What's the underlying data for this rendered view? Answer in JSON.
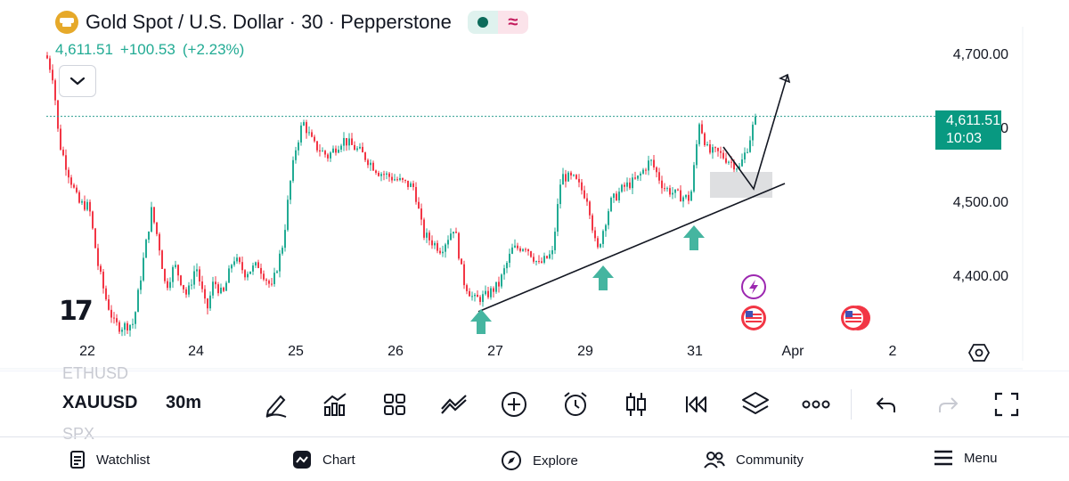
{
  "header": {
    "title": "Gold Spot / U.S. Dollar · 30 · Pepperstone",
    "logo_icon": "gold-bars-icon",
    "market_status_icon": "market-open-dot-icon",
    "data_mode_icon": "delayed-wave-icon"
  },
  "quote": {
    "last": "4,611.51",
    "change": "+100.53",
    "change_pct": "(+2.23%)",
    "color": "#22ab94"
  },
  "price_axis": {
    "labels": [
      "4,700.00",
      "4,500.00",
      "4,400.00"
    ],
    "current_price": "4,611.51",
    "countdown": "10:03",
    "tag_color": "#089981"
  },
  "time_axis": {
    "labels": [
      "22",
      "24",
      "25",
      "26",
      "27",
      "29",
      "31",
      "Apr",
      "2"
    ]
  },
  "chart_data": {
    "type": "candlestick",
    "symbol": "XAUUSD",
    "interval": "30",
    "ylim": [
      4330,
      4720
    ],
    "up_color": "#22ab94",
    "down_color": "#f23645",
    "current_price": 4611.51,
    "trendline": {
      "from_price": 4360,
      "to_price": 4525
    },
    "projection": {
      "from_price": 4518,
      "to_price": 4665
    },
    "buy_markers": 3,
    "events": [
      "flash-event-icon",
      "us-flag-icon",
      "us-flag-icon"
    ]
  },
  "branding": {
    "logo_text": "17"
  },
  "toolbar": {
    "ghost_prev": "ETHUSD",
    "symbol": "XAUUSD",
    "interval": "30m",
    "ghost_next": "SPX",
    "tools": [
      "draw-pen-icon",
      "indicators-icon",
      "templates-grid-icon",
      "compare-icon",
      "add-plus-icon",
      "alert-clock-icon",
      "candle-type-icon",
      "replay-icon",
      "layers-icon",
      "more-dots-icon",
      "undo-icon",
      "redo-icon",
      "fullscreen-icon"
    ]
  },
  "bottom_nav": {
    "items": [
      {
        "label": "Watchlist",
        "icon": "watchlist-icon"
      },
      {
        "label": "Chart",
        "icon": "chart-icon"
      },
      {
        "label": "Explore",
        "icon": "compass-icon"
      },
      {
        "label": "Community",
        "icon": "community-icon"
      },
      {
        "label": "Menu",
        "icon": "hamburger-icon"
      }
    ]
  }
}
